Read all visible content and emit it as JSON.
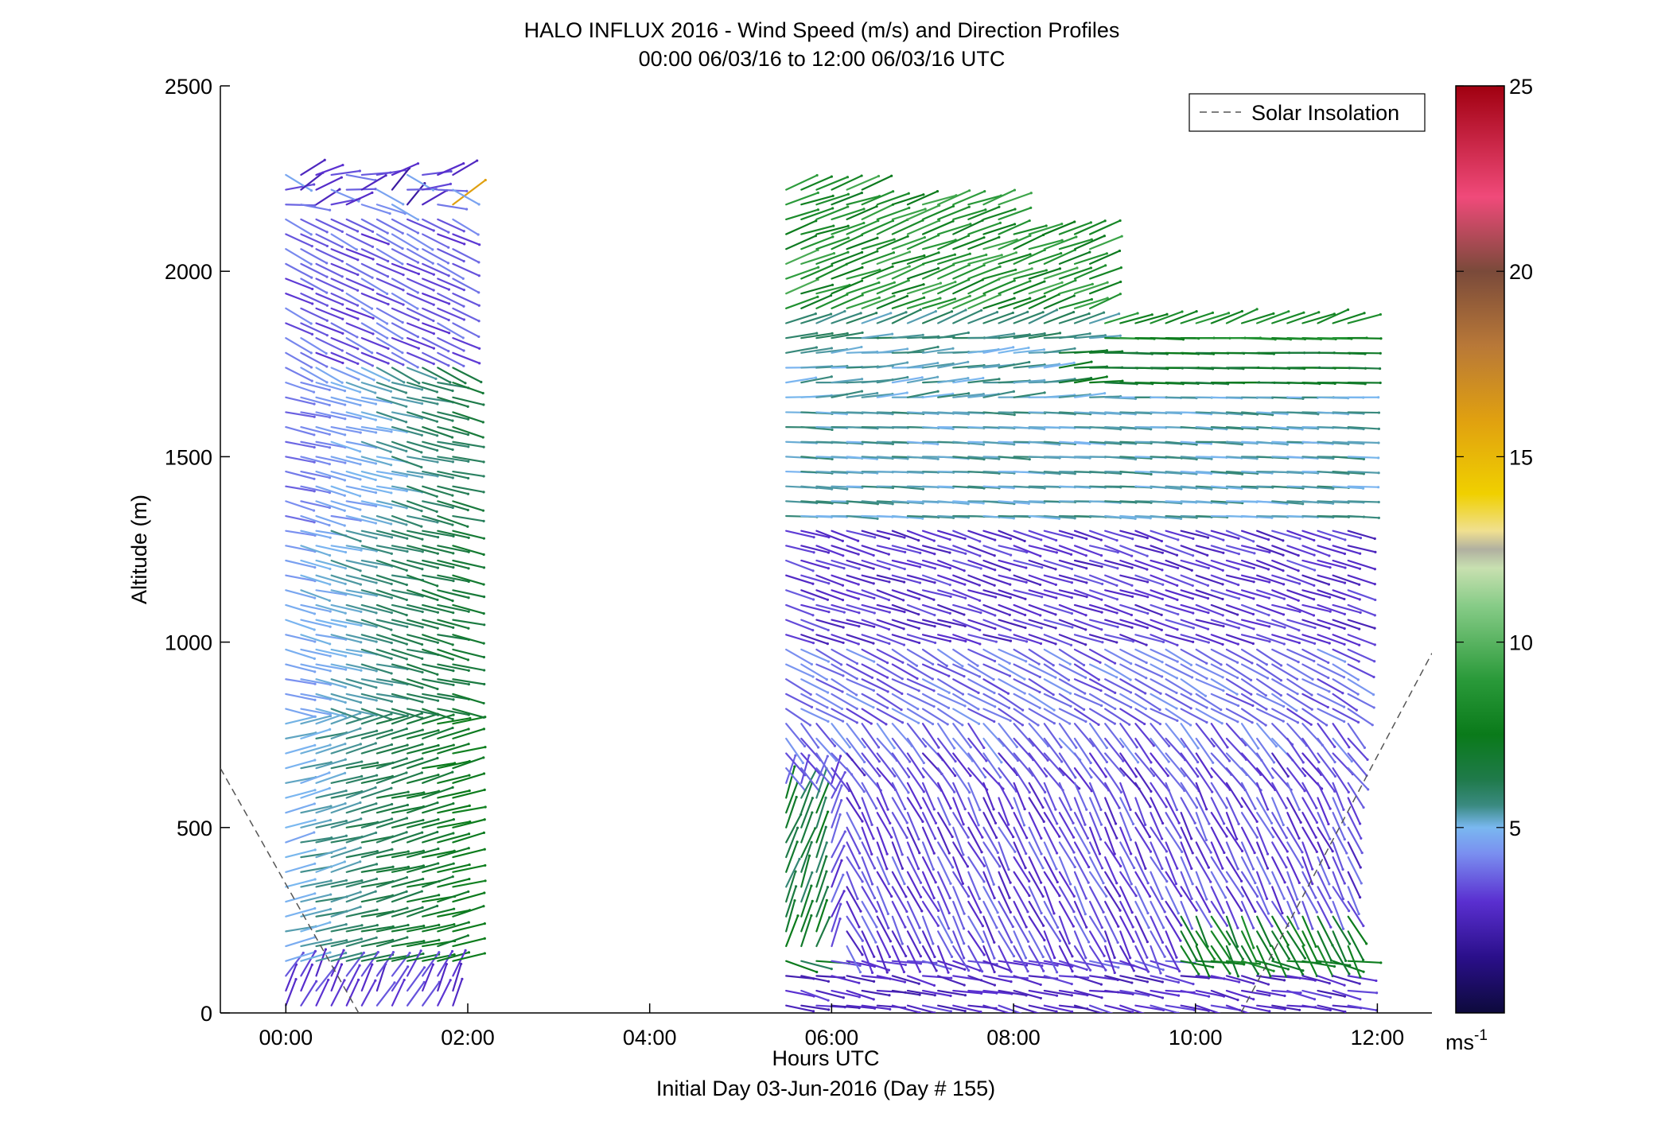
{
  "chart_data": {
    "type": "wind-barb-profile",
    "title": "HALO INFLUX 2016 - Wind Speed (m/s) and Direction Profiles",
    "subtitle": "00:00 06/03/16 to 12:00 06/03/16  UTC",
    "xlabel": "Hours UTC",
    "xlabel2": "Initial Day 03-Jun-2016 (Day # 155)",
    "ylabel": "Altitude (m)",
    "xlim": [
      -0.72,
      12.6
    ],
    "ylim": [
      0,
      2500
    ],
    "x_ticks": [
      0,
      2,
      4,
      6,
      8,
      10,
      12
    ],
    "x_tick_labels": [
      "00:00",
      "02:00",
      "04:00",
      "06:00",
      "08:00",
      "10:00",
      "12:00"
    ],
    "y_ticks": [
      0,
      500,
      1000,
      1500,
      2000,
      2500
    ],
    "y_tick_labels": [
      "0",
      "500",
      "1000",
      "1500",
      "2000",
      "2500"
    ],
    "colorbar": {
      "label": "ms",
      "label_exponent": "-1",
      "range": [
        0,
        25
      ],
      "ticks": [
        5,
        10,
        15,
        20,
        25
      ],
      "tick_labels": [
        "5",
        "10",
        "15",
        "20",
        "25"
      ],
      "colormap": [
        {
          "v": 0.0,
          "color": "#0d0a3c"
        },
        {
          "v": 1.5,
          "color": "#2a0f8a"
        },
        {
          "v": 3.0,
          "color": "#5a2fd0"
        },
        {
          "v": 4.3,
          "color": "#7a8ff0"
        },
        {
          "v": 5.0,
          "color": "#7ab8f0"
        },
        {
          "v": 5.6,
          "color": "#3a8a80"
        },
        {
          "v": 6.3,
          "color": "#1f7a4a"
        },
        {
          "v": 7.5,
          "color": "#0a7a1a"
        },
        {
          "v": 9.0,
          "color": "#2a9a3a"
        },
        {
          "v": 11.0,
          "color": "#88cc88"
        },
        {
          "v": 12.0,
          "color": "#c8e0b0"
        },
        {
          "v": 12.5,
          "color": "#b0b0a0"
        },
        {
          "v": 13.0,
          "color": "#f0e090"
        },
        {
          "v": 14.0,
          "color": "#f0d000"
        },
        {
          "v": 16.0,
          "color": "#e0a010"
        },
        {
          "v": 18.0,
          "color": "#b87838"
        },
        {
          "v": 20.0,
          "color": "#7a4a3a"
        },
        {
          "v": 22.0,
          "color": "#f04a7a"
        },
        {
          "v": 25.0,
          "color": "#a00010"
        }
      ]
    },
    "legend": {
      "entries": [
        "Solar Insolation"
      ],
      "placement": "top-right"
    },
    "solar_insolation": [
      {
        "x": -0.72,
        "y": 660
      },
      {
        "x": 0.8,
        "y": 0
      },
      {
        "x": 10.5,
        "y": 0
      },
      {
        "x": 12.6,
        "y": 970
      }
    ],
    "series": [
      {
        "name": "segment-1",
        "time_start": 0.0,
        "time_end": 2.0,
        "time_step": 0.167,
        "alt_start": 20,
        "alt_end": 2270,
        "alt_step": 40
      },
      {
        "name": "segment-2",
        "time_start": 5.5,
        "time_end": 11.83,
        "time_step": 0.167,
        "alt_start": 20,
        "alt_end": 2230,
        "alt_step": 40
      }
    ]
  }
}
